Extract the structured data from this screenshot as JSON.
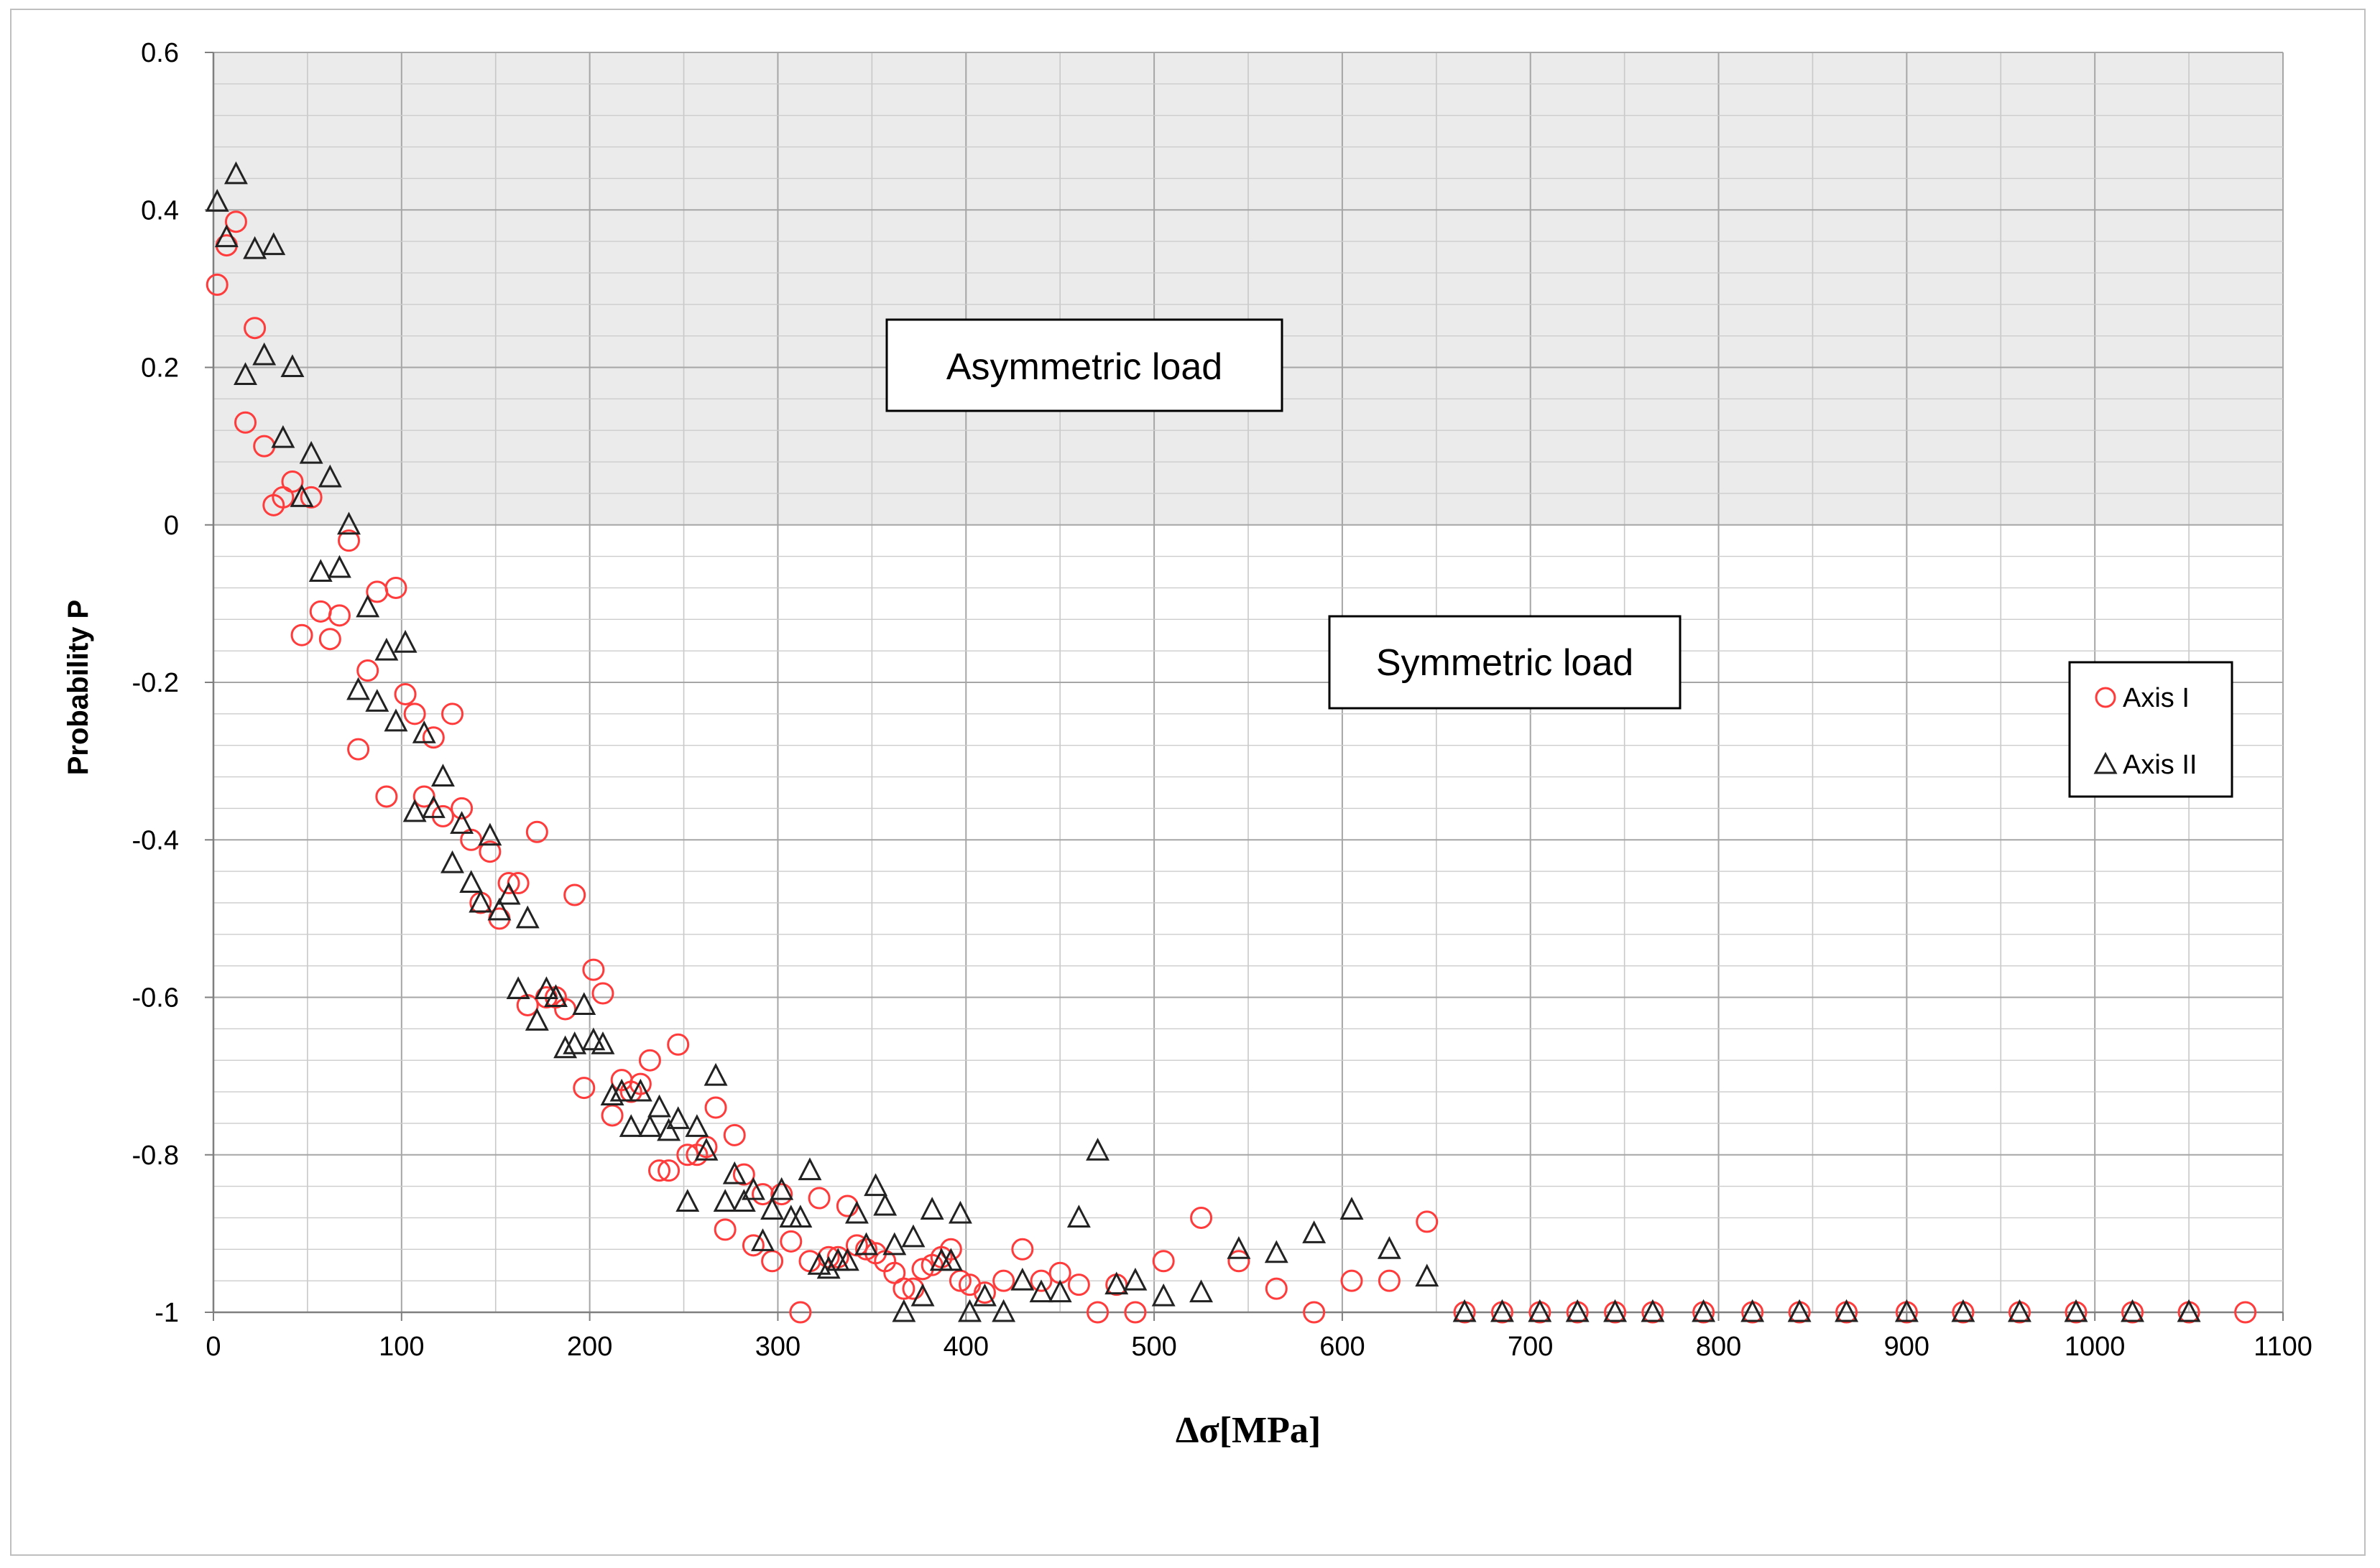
{
  "chart_data": {
    "type": "scatter",
    "xlabel": "Δσ[MPa]",
    "ylabel": "Probability  P",
    "xlim": [
      0,
      1100
    ],
    "ylim": [
      -1,
      0.6
    ],
    "x_ticks": [
      "0",
      "100",
      "200",
      "300",
      "400",
      "500",
      "600",
      "700",
      "800",
      "900",
      "1000",
      "1100"
    ],
    "y_ticks": [
      "0.6",
      "0.4",
      "0.2",
      "0",
      "-0.2",
      "-0.4",
      "-0.6",
      "-0.8",
      "-1"
    ],
    "grid": true,
    "shaded_region": {
      "y_from": 0,
      "y_to": 0.6,
      "color": "#ebebeb"
    },
    "annotations": [
      {
        "text": "Asymmetric load",
        "x": 460,
        "y": 0.2
      },
      {
        "text": "Symmetric load",
        "x": 690,
        "y": -0.175
      }
    ],
    "legend_position": "right",
    "series": [
      {
        "name": "Axis I",
        "marker": "circle",
        "color": "#ff3b3b",
        "x": [
          2,
          7,
          12,
          17,
          22,
          27,
          32,
          37,
          42,
          47,
          52,
          57,
          62,
          67,
          72,
          77,
          82,
          87,
          92,
          97,
          102,
          107,
          112,
          117,
          122,
          127,
          132,
          137,
          142,
          147,
          152,
          157,
          162,
          167,
          172,
          177,
          182,
          187,
          192,
          197,
          202,
          207,
          212,
          217,
          222,
          227,
          232,
          237,
          242,
          247,
          252,
          257,
          262,
          267,
          272,
          277,
          282,
          287,
          292,
          297,
          302,
          307,
          312,
          317,
          322,
          327,
          332,
          337,
          342,
          347,
          352,
          357,
          362,
          367,
          372,
          377,
          382,
          387,
          392,
          397,
          402,
          410,
          420,
          430,
          440,
          450,
          460,
          470,
          480,
          490,
          505,
          525,
          545,
          565,
          585,
          605,
          625,
          645,
          665,
          685,
          705,
          725,
          745,
          765,
          792,
          818,
          843,
          868,
          900,
          930,
          960,
          990,
          1020,
          1050,
          1080
        ],
        "y": [
          0.305,
          0.355,
          0.385,
          0.13,
          0.25,
          0.1,
          0.025,
          0.035,
          0.055,
          -0.14,
          0.035,
          -0.11,
          -0.145,
          -0.115,
          -0.02,
          -0.285,
          -0.185,
          -0.085,
          -0.345,
          -0.08,
          -0.215,
          -0.24,
          -0.345,
          -0.27,
          -0.37,
          -0.24,
          -0.36,
          -0.4,
          -0.48,
          -0.415,
          -0.5,
          -0.455,
          -0.455,
          -0.61,
          -0.39,
          -0.6,
          -0.6,
          -0.615,
          -0.47,
          -0.715,
          -0.565,
          -0.595,
          -0.75,
          -0.705,
          -0.72,
          -0.71,
          -0.68,
          -0.82,
          -0.82,
          -0.66,
          -0.8,
          -0.8,
          -0.79,
          -0.74,
          -0.895,
          -0.775,
          -0.825,
          -0.915,
          -0.85,
          -0.935,
          -0.85,
          -0.91,
          -1.0,
          -0.935,
          -0.855,
          -0.93,
          -0.93,
          -0.865,
          -0.915,
          -0.92,
          -0.925,
          -0.935,
          -0.95,
          -0.97,
          -0.97,
          -0.945,
          -0.94,
          -0.93,
          -0.92,
          -0.96,
          -0.965,
          -0.975,
          -0.96,
          -0.92,
          -0.96,
          -0.95,
          -0.965,
          -1.0,
          -0.965,
          -1.0,
          -0.935,
          -0.88,
          -0.935,
          -0.97,
          -1.0,
          -0.96,
          -0.96,
          -0.885,
          -1.0,
          -1.0,
          -1.0,
          -1.0,
          -1.0,
          -1.0,
          -1.0,
          -1.0,
          -1.0,
          -1.0,
          -1.0,
          -1.0,
          -1.0,
          -1.0,
          -1.0,
          -1.0,
          -1.0
        ]
      },
      {
        "name": "Axis II",
        "marker": "triangle",
        "color": "#222222",
        "x": [
          2,
          7,
          12,
          17,
          22,
          27,
          32,
          37,
          42,
          47,
          52,
          57,
          62,
          67,
          72,
          77,
          82,
          87,
          92,
          97,
          102,
          107,
          112,
          117,
          122,
          127,
          132,
          137,
          142,
          147,
          152,
          157,
          162,
          167,
          172,
          177,
          182,
          187,
          192,
          197,
          202,
          207,
          212,
          217,
          222,
          227,
          232,
          237,
          242,
          247,
          252,
          257,
          262,
          267,
          272,
          277,
          282,
          287,
          292,
          297,
          302,
          307,
          312,
          317,
          322,
          327,
          332,
          337,
          342,
          347,
          352,
          357,
          362,
          367,
          372,
          377,
          382,
          387,
          392,
          397,
          402,
          410,
          420,
          430,
          440,
          450,
          460,
          470,
          480,
          490,
          505,
          525,
          545,
          565,
          585,
          605,
          625,
          645,
          665,
          685,
          705,
          725,
          745,
          765,
          792,
          818,
          843,
          868,
          900,
          930,
          960,
          990,
          1020,
          1050
        ],
        "y": [
          0.41,
          0.365,
          0.445,
          0.19,
          0.35,
          0.215,
          0.355,
          0.11,
          0.2,
          0.035,
          0.09,
          -0.06,
          0.06,
          -0.055,
          0.0,
          -0.21,
          -0.105,
          -0.225,
          -0.16,
          -0.25,
          -0.15,
          -0.365,
          -0.265,
          -0.36,
          -0.32,
          -0.43,
          -0.38,
          -0.455,
          -0.48,
          -0.395,
          -0.49,
          -0.47,
          -0.59,
          -0.5,
          -0.63,
          -0.59,
          -0.6,
          -0.665,
          -0.66,
          -0.61,
          -0.655,
          -0.66,
          -0.725,
          -0.72,
          -0.765,
          -0.72,
          -0.765,
          -0.74,
          -0.77,
          -0.755,
          -0.86,
          -0.765,
          -0.795,
          -0.7,
          -0.86,
          -0.825,
          -0.86,
          -0.845,
          -0.91,
          -0.87,
          -0.845,
          -0.88,
          -0.88,
          -0.82,
          -0.94,
          -0.945,
          -0.935,
          -0.935,
          -0.875,
          -0.915,
          -0.84,
          -0.865,
          -0.915,
          -1.0,
          -0.905,
          -0.98,
          -0.87,
          -0.935,
          -0.935,
          -0.875,
          -1.0,
          -0.98,
          -1.0,
          -0.96,
          -0.975,
          -0.975,
          -0.88,
          -0.795,
          -0.965,
          -0.96,
          -0.98,
          -0.975,
          -0.92,
          -0.925,
          -0.9,
          -0.87,
          -0.92,
          -0.955,
          -1.0,
          -1.0,
          -1.0,
          -1.0,
          -1.0,
          -1.0,
          -1.0,
          -1.0,
          -1.0,
          -1.0,
          -1.0,
          -1.0,
          -1.0,
          -1.0,
          -1.0,
          -1.0
        ]
      }
    ]
  }
}
